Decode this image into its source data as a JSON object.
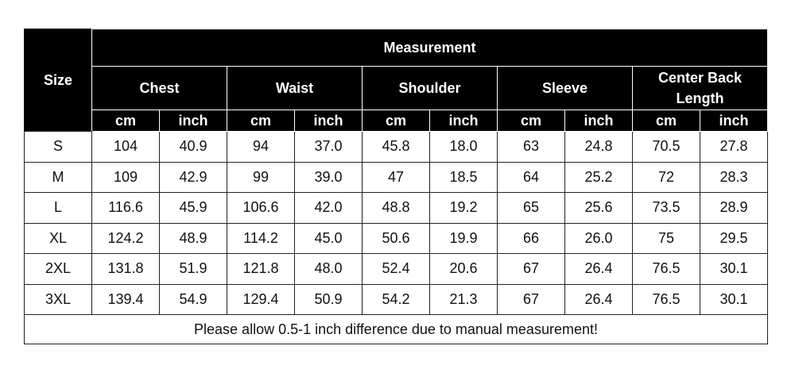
{
  "header": {
    "size": "Size",
    "measurement": "Measurement",
    "groups": [
      "Chest",
      "Waist",
      "Shoulder",
      "Sleeve",
      "Center Back Length"
    ],
    "units": [
      "cm",
      "inch",
      "cm",
      "inch",
      "cm",
      "inch",
      "cm",
      "inch",
      "cm",
      "inch"
    ]
  },
  "table": {
    "rows": [
      [
        "S",
        "104",
        "40.9",
        "94",
        "37.0",
        "45.8",
        "18.0",
        "63",
        "24.8",
        "70.5",
        "27.8"
      ],
      [
        "M",
        "109",
        "42.9",
        "99",
        "39.0",
        "47",
        "18.5",
        "64",
        "25.2",
        "72",
        "28.3"
      ],
      [
        "L",
        "116.6",
        "45.9",
        "106.6",
        "42.0",
        "48.8",
        "19.2",
        "65",
        "25.6",
        "73.5",
        "28.9"
      ],
      [
        "XL",
        "124.2",
        "48.9",
        "114.2",
        "45.0",
        "50.6",
        "19.9",
        "66",
        "26.0",
        "75",
        "29.5"
      ],
      [
        "2XL",
        "131.8",
        "51.9",
        "121.8",
        "48.0",
        "52.4",
        "20.6",
        "67",
        "26.4",
        "76.5",
        "30.1"
      ],
      [
        "3XL",
        "139.4",
        "54.9",
        "129.4",
        "50.9",
        "54.2",
        "21.3",
        "67",
        "26.4",
        "76.5",
        "30.1"
      ]
    ]
  },
  "footer": {
    "note": "Please allow 0.5-1 inch difference due to manual measurement!"
  }
}
